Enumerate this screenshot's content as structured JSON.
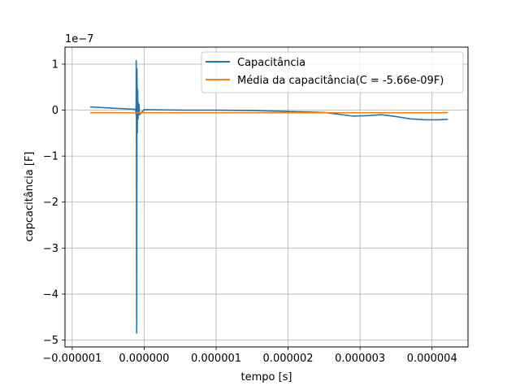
{
  "chart_data": {
    "type": "line",
    "xlabel": "tempo [s]",
    "ylabel": "capcacitância [F]",
    "y_offset_label": "1e−7",
    "xlim": [
      -1.1e-06,
      4.5e-06
    ],
    "ylim": [
      -5.15e-07,
      1.37e-07
    ],
    "y_scale_factor": 1e-07,
    "x_ticks": [
      -1e-06,
      0,
      1e-06,
      2e-06,
      3e-06,
      4e-06
    ],
    "x_tick_labels": [
      "−0.000001",
      "0.000000",
      "0.000001",
      "0.000002",
      "0.000003",
      "0.000004"
    ],
    "y_ticks": [
      -5e-07,
      -4e-07,
      -3e-07,
      -2e-07,
      -1e-07,
      0,
      1e-07
    ],
    "y_tick_labels": [
      "−5",
      "−4",
      "−3",
      "−2",
      "−1",
      "0",
      "1"
    ],
    "grid": true,
    "legend_position": "top-right",
    "series": [
      {
        "name": "Capacitância",
        "color": "#1f77b4",
        "x": [
          -7.5e-07,
          -4e-07,
          -1.5e-07,
          -1.2e-07,
          -1.12e-07,
          -1.1e-07,
          -1.08e-07,
          -1.06e-07,
          -1.04e-07,
          -1.02e-07,
          -1e-07,
          -9.8e-08,
          -9.5e-08,
          -9e-08,
          -8.5e-08,
          -8e-08,
          -7.5e-08,
          -7e-08,
          -6.5e-08,
          0,
          5e-07,
          1e-06,
          1.5e-06,
          2e-06,
          2.5e-06,
          2.7e-06,
          2.9e-06,
          3.1e-06,
          3.3e-06,
          3.5e-06,
          3.7e-06,
          3.9e-06,
          4.1e-06,
          4.22e-06
        ],
        "y": [
          7e-09,
          4e-09,
          2e-09,
          2e-09,
          -1e-08,
          1.08e-07,
          5e-08,
          -2.5e-07,
          -4.85e-07,
          -3e-07,
          9e-08,
          5e-08,
          -5e-08,
          4.5e-08,
          -2e-08,
          1.5e-08,
          -1e-08,
          1.2e-08,
          -1e-08,
          1e-09,
          0,
          0,
          -1e-09,
          -3e-09,
          -5e-09,
          -9e-09,
          -1.3e-08,
          -1.2e-08,
          -1e-08,
          -1.4e-08,
          -1.9e-08,
          -2.1e-08,
          -2.1e-08,
          -2e-08
        ]
      },
      {
        "name": "Média da capacitância(C = -5.66e-09F)",
        "color": "#ff7f0e",
        "x": [
          -7.5e-07,
          4.22e-06
        ],
        "y": [
          -5.66e-09,
          -5.66e-09
        ]
      }
    ]
  }
}
